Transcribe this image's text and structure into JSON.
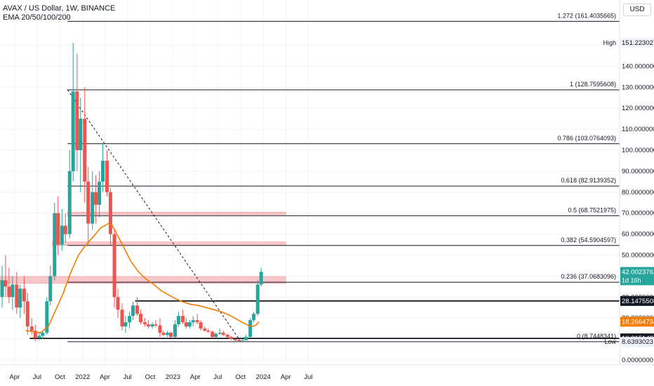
{
  "legend": {
    "title": "AVAX / US Dollar, 1W, BINANCE",
    "indicator": "EMA 20/50/100/200"
  },
  "currency_button": "USD",
  "colors": {
    "up": "#26a69a",
    "down": "#ef5350",
    "ema": "#f57c00",
    "fib_line": "#131722",
    "zone": "#f7c6c9",
    "grid": "#f0f3fa"
  },
  "chart_data": {
    "type": "candlestick",
    "title": "AVAX / US Dollar, 1W, BINANCE",
    "x_range": [
      "2021-02",
      "2024-08"
    ],
    "y_range": [
      0,
      170
    ],
    "x_ticks": [
      "Apr",
      "Jul",
      "Oct",
      "2022",
      "Apr",
      "Jul",
      "Oct",
      "2023",
      "Apr",
      "Jul",
      "Oct",
      "2024",
      "Apr",
      "Jul"
    ],
    "x_tick_dates": [
      "2021-04",
      "2021-07",
      "2021-10",
      "2022-01",
      "2022-04",
      "2022-07",
      "2022-10",
      "2023-01",
      "2023-04",
      "2023-07",
      "2023-10",
      "2024-01",
      "2024-04",
      "2024-07"
    ],
    "y_ticks": [
      "0.0000000",
      "10.0000000",
      "20.0000000",
      "30.0000000",
      "40.0000000",
      "50.0000000",
      "60.0000000",
      "70.0000000",
      "80.0000000",
      "90.0000000",
      "100.0000000",
      "110.0000000",
      "120.0000000",
      "130.0000000",
      "140.0000000",
      "150.0000000"
    ],
    "y_tick_values": [
      0,
      10,
      20,
      30,
      40,
      50,
      60,
      70,
      80,
      90,
      100,
      110,
      120,
      130,
      140,
      150
    ],
    "fib_levels": [
      {
        "label": "1.272 (161.4035665)",
        "value": 161.4035665,
        "from": "2021-11"
      },
      {
        "label": "1 (128.7595608)",
        "value": 128.7595608,
        "from": "2021-11"
      },
      {
        "label": "0.786 (103.0764093)",
        "value": 103.0764093,
        "from": "2021-11"
      },
      {
        "label": "0.618 (82.9139352)",
        "value": 82.9139352,
        "from": "2021-11"
      },
      {
        "label": "0.5 (68.7521975)",
        "value": 68.7521975,
        "from": "2021-11"
      },
      {
        "label": "0.382 (54.5904597)",
        "value": 54.5904597,
        "from": "2021-11"
      },
      {
        "label": "0.236 (37.0683096)",
        "value": 37.0683096,
        "from": "2021-11"
      },
      {
        "label": "0 (8.7448341)",
        "value": 8.7448341,
        "from": "2021-11"
      }
    ],
    "zones": [
      {
        "y_top": 70.5,
        "y_bottom": 69.3,
        "from": "2021-11",
        "to": "2024-04"
      },
      {
        "y_top": 56.3,
        "y_bottom": 54.6,
        "from": "2021-09",
        "to": "2024-04"
      },
      {
        "y_top": 39.8,
        "y_bottom": 36.5,
        "from": "2021-02",
        "to": "2024-04"
      }
    ],
    "horizontal_lines": [
      {
        "value": 28.1475508,
        "from": "2022-08",
        "to": "2024-08"
      },
      {
        "value": 10.3151427,
        "from": "2021-06",
        "to": "2024-08"
      }
    ],
    "trendline": {
      "from": [
        "2021-11",
        128.76
      ],
      "to": [
        "2023-10",
        9.0
      ]
    },
    "price_labels": [
      {
        "text": "High",
        "value_text": "151.2230275",
        "value": 151.2230275,
        "style": "plain"
      },
      {
        "text": "",
        "value_text": "42.0023762",
        "value": 42.0023762,
        "style": "green",
        "sub": "1d 16h"
      },
      {
        "text": "",
        "value_text": "28.1475508",
        "value": 28.1475508,
        "style": "dark"
      },
      {
        "text": "",
        "value_text": "18.2664734",
        "value": 18.2664734,
        "style": "orange"
      },
      {
        "text": "",
        "value_text": "10.3151427",
        "value": 10.3151427,
        "style": "dark"
      },
      {
        "text": "Low",
        "value_text": "8.6393023",
        "value": 8.6393023,
        "style": "plain"
      }
    ],
    "candles": [
      {
        "t": "2021-02-01",
        "o": 30,
        "h": 45,
        "l": 25,
        "c": 38
      },
      {
        "t": "2021-02-15",
        "o": 38,
        "h": 50,
        "l": 30,
        "c": 35
      },
      {
        "t": "2021-03-01",
        "o": 35,
        "h": 44,
        "l": 27,
        "c": 30
      },
      {
        "t": "2021-03-15",
        "o": 30,
        "h": 40,
        "l": 24,
        "c": 36
      },
      {
        "t": "2021-04-01",
        "o": 36,
        "h": 42,
        "l": 22,
        "c": 25
      },
      {
        "t": "2021-04-15",
        "o": 25,
        "h": 36,
        "l": 20,
        "c": 34
      },
      {
        "t": "2021-05-01",
        "o": 34,
        "h": 40,
        "l": 22,
        "c": 28
      },
      {
        "t": "2021-05-15",
        "o": 28,
        "h": 32,
        "l": 12,
        "c": 16
      },
      {
        "t": "2021-06-01",
        "o": 16,
        "h": 20,
        "l": 12,
        "c": 14
      },
      {
        "t": "2021-06-15",
        "o": 14,
        "h": 17,
        "l": 9,
        "c": 10.5
      },
      {
        "t": "2021-07-01",
        "o": 10.5,
        "h": 13,
        "l": 9.5,
        "c": 11.5
      },
      {
        "t": "2021-07-15",
        "o": 11.5,
        "h": 14,
        "l": 10,
        "c": 13
      },
      {
        "t": "2021-08-01",
        "o": 13,
        "h": 30,
        "l": 12,
        "c": 28
      },
      {
        "t": "2021-08-15",
        "o": 28,
        "h": 45,
        "l": 26,
        "c": 40
      },
      {
        "t": "2021-09-01",
        "o": 40,
        "h": 75,
        "l": 38,
        "c": 70
      },
      {
        "t": "2021-09-15",
        "o": 70,
        "h": 78,
        "l": 50,
        "c": 55
      },
      {
        "t": "2021-10-01",
        "o": 55,
        "h": 72,
        "l": 52,
        "c": 64
      },
      {
        "t": "2021-10-15",
        "o": 64,
        "h": 70,
        "l": 56,
        "c": 60
      },
      {
        "t": "2021-11-01",
        "o": 60,
        "h": 100,
        "l": 58,
        "c": 90
      },
      {
        "t": "2021-11-15",
        "o": 90,
        "h": 151.2,
        "l": 85,
        "c": 128
      },
      {
        "t": "2021-12-01",
        "o": 128,
        "h": 146,
        "l": 90,
        "c": 100
      },
      {
        "t": "2021-12-15",
        "o": 100,
        "h": 125,
        "l": 80,
        "c": 115
      },
      {
        "t": "2022-01-01",
        "o": 115,
        "h": 130,
        "l": 75,
        "c": 85
      },
      {
        "t": "2022-01-15",
        "o": 85,
        "h": 92,
        "l": 55,
        "c": 65
      },
      {
        "t": "2022-02-01",
        "o": 65,
        "h": 90,
        "l": 62,
        "c": 80
      },
      {
        "t": "2022-02-15",
        "o": 80,
        "h": 88,
        "l": 65,
        "c": 74
      },
      {
        "t": "2022-03-01",
        "o": 74,
        "h": 90,
        "l": 68,
        "c": 85
      },
      {
        "t": "2022-03-15",
        "o": 85,
        "h": 103,
        "l": 80,
        "c": 95
      },
      {
        "t": "2022-04-01",
        "o": 95,
        "h": 100,
        "l": 78,
        "c": 80
      },
      {
        "t": "2022-04-15",
        "o": 80,
        "h": 82,
        "l": 55,
        "c": 60
      },
      {
        "t": "2022-05-01",
        "o": 60,
        "h": 62,
        "l": 25,
        "c": 30
      },
      {
        "t": "2022-05-15",
        "o": 30,
        "h": 34,
        "l": 20,
        "c": 24
      },
      {
        "t": "2022-06-01",
        "o": 24,
        "h": 27,
        "l": 14,
        "c": 16
      },
      {
        "t": "2022-06-15",
        "o": 16,
        "h": 21,
        "l": 13,
        "c": 18
      },
      {
        "t": "2022-07-01",
        "o": 18,
        "h": 23,
        "l": 15,
        "c": 21
      },
      {
        "t": "2022-07-15",
        "o": 21,
        "h": 28,
        "l": 19,
        "c": 26
      },
      {
        "t": "2022-08-01",
        "o": 26,
        "h": 30,
        "l": 21,
        "c": 22
      },
      {
        "t": "2022-08-15",
        "o": 22,
        "h": 24,
        "l": 17,
        "c": 18
      },
      {
        "t": "2022-09-01",
        "o": 18,
        "h": 20,
        "l": 16,
        "c": 17
      },
      {
        "t": "2022-09-15",
        "o": 17,
        "h": 19,
        "l": 15,
        "c": 16
      },
      {
        "t": "2022-10-01",
        "o": 16,
        "h": 18,
        "l": 15,
        "c": 17
      },
      {
        "t": "2022-10-15",
        "o": 17,
        "h": 19,
        "l": 15.5,
        "c": 16.5
      },
      {
        "t": "2022-11-01",
        "o": 16.5,
        "h": 20,
        "l": 11,
        "c": 13
      },
      {
        "t": "2022-11-15",
        "o": 13,
        "h": 14,
        "l": 11.5,
        "c": 12
      },
      {
        "t": "2022-12-01",
        "o": 12,
        "h": 14,
        "l": 11,
        "c": 13
      },
      {
        "t": "2022-12-15",
        "o": 13,
        "h": 13.5,
        "l": 10.5,
        "c": 11
      },
      {
        "t": "2023-01-01",
        "o": 11,
        "h": 19,
        "l": 10.5,
        "c": 17
      },
      {
        "t": "2023-01-15",
        "o": 17,
        "h": 23,
        "l": 16,
        "c": 21
      },
      {
        "t": "2023-02-01",
        "o": 21,
        "h": 24,
        "l": 17,
        "c": 18
      },
      {
        "t": "2023-02-15",
        "o": 18,
        "h": 20,
        "l": 15,
        "c": 16
      },
      {
        "t": "2023-03-01",
        "o": 16,
        "h": 19,
        "l": 15,
        "c": 18
      },
      {
        "t": "2023-03-15",
        "o": 18,
        "h": 21,
        "l": 16,
        "c": 19
      },
      {
        "t": "2023-04-01",
        "o": 19,
        "h": 22,
        "l": 17,
        "c": 18
      },
      {
        "t": "2023-04-15",
        "o": 18,
        "h": 19,
        "l": 14,
        "c": 15
      },
      {
        "t": "2023-05-01",
        "o": 15,
        "h": 16,
        "l": 13.5,
        "c": 14
      },
      {
        "t": "2023-05-15",
        "o": 14,
        "h": 15,
        "l": 13,
        "c": 13.5
      },
      {
        "t": "2023-06-01",
        "o": 13.5,
        "h": 14,
        "l": 10.5,
        "c": 11
      },
      {
        "t": "2023-06-15",
        "o": 11,
        "h": 13,
        "l": 10.5,
        "c": 12.5
      },
      {
        "t": "2023-07-01",
        "o": 12.5,
        "h": 15,
        "l": 12,
        "c": 13
      },
      {
        "t": "2023-07-15",
        "o": 13,
        "h": 14,
        "l": 11.5,
        "c": 12
      },
      {
        "t": "2023-08-01",
        "o": 12,
        "h": 12.5,
        "l": 10.5,
        "c": 11
      },
      {
        "t": "2023-08-15",
        "o": 11,
        "h": 11.5,
        "l": 9.5,
        "c": 10
      },
      {
        "t": "2023-09-01",
        "o": 10,
        "h": 10.5,
        "l": 9,
        "c": 9.4
      },
      {
        "t": "2023-09-15",
        "o": 9.4,
        "h": 10,
        "l": 8.7,
        "c": 9.2
      },
      {
        "t": "2023-10-01",
        "o": 9.2,
        "h": 10,
        "l": 8.64,
        "c": 9.5
      },
      {
        "t": "2023-10-15",
        "o": 9.5,
        "h": 12,
        "l": 9.3,
        "c": 11
      },
      {
        "t": "2023-11-01",
        "o": 11,
        "h": 20,
        "l": 10.8,
        "c": 19
      },
      {
        "t": "2023-11-15",
        "o": 19,
        "h": 23,
        "l": 18,
        "c": 22
      },
      {
        "t": "2023-12-01",
        "o": 22,
        "h": 38,
        "l": 21,
        "c": 36
      },
      {
        "t": "2023-12-15",
        "o": 36,
        "h": 44,
        "l": 35,
        "c": 42
      }
    ],
    "ema": [
      [
        "2021-05-15",
        14
      ],
      [
        "2021-06-15",
        13.5
      ],
      [
        "2021-07-15",
        13
      ],
      [
        "2021-08-15",
        16
      ],
      [
        "2021-09-15",
        24
      ],
      [
        "2021-10-15",
        32
      ],
      [
        "2021-11-15",
        42
      ],
      [
        "2021-12-15",
        50
      ],
      [
        "2022-01-15",
        55
      ],
      [
        "2022-02-15",
        59
      ],
      [
        "2022-03-15",
        63
      ],
      [
        "2022-04-15",
        65
      ],
      [
        "2022-05-01",
        64
      ],
      [
        "2022-05-15",
        61
      ],
      [
        "2022-06-15",
        54
      ],
      [
        "2022-07-15",
        47
      ],
      [
        "2022-08-15",
        42
      ],
      [
        "2022-09-15",
        38.5
      ],
      [
        "2022-10-15",
        36
      ],
      [
        "2022-11-15",
        33
      ],
      [
        "2022-12-15",
        31
      ],
      [
        "2023-01-15",
        29
      ],
      [
        "2023-02-15",
        27.5
      ],
      [
        "2023-03-15",
        26.5
      ],
      [
        "2023-04-15",
        26
      ],
      [
        "2023-05-15",
        25
      ],
      [
        "2023-06-15",
        24
      ],
      [
        "2023-07-15",
        23
      ],
      [
        "2023-08-15",
        21.5
      ],
      [
        "2023-09-15",
        19.5
      ],
      [
        "2023-10-15",
        17.5
      ],
      [
        "2023-11-15",
        16
      ],
      [
        "2023-12-01",
        16.5
      ],
      [
        "2023-12-15",
        18.27
      ]
    ]
  }
}
